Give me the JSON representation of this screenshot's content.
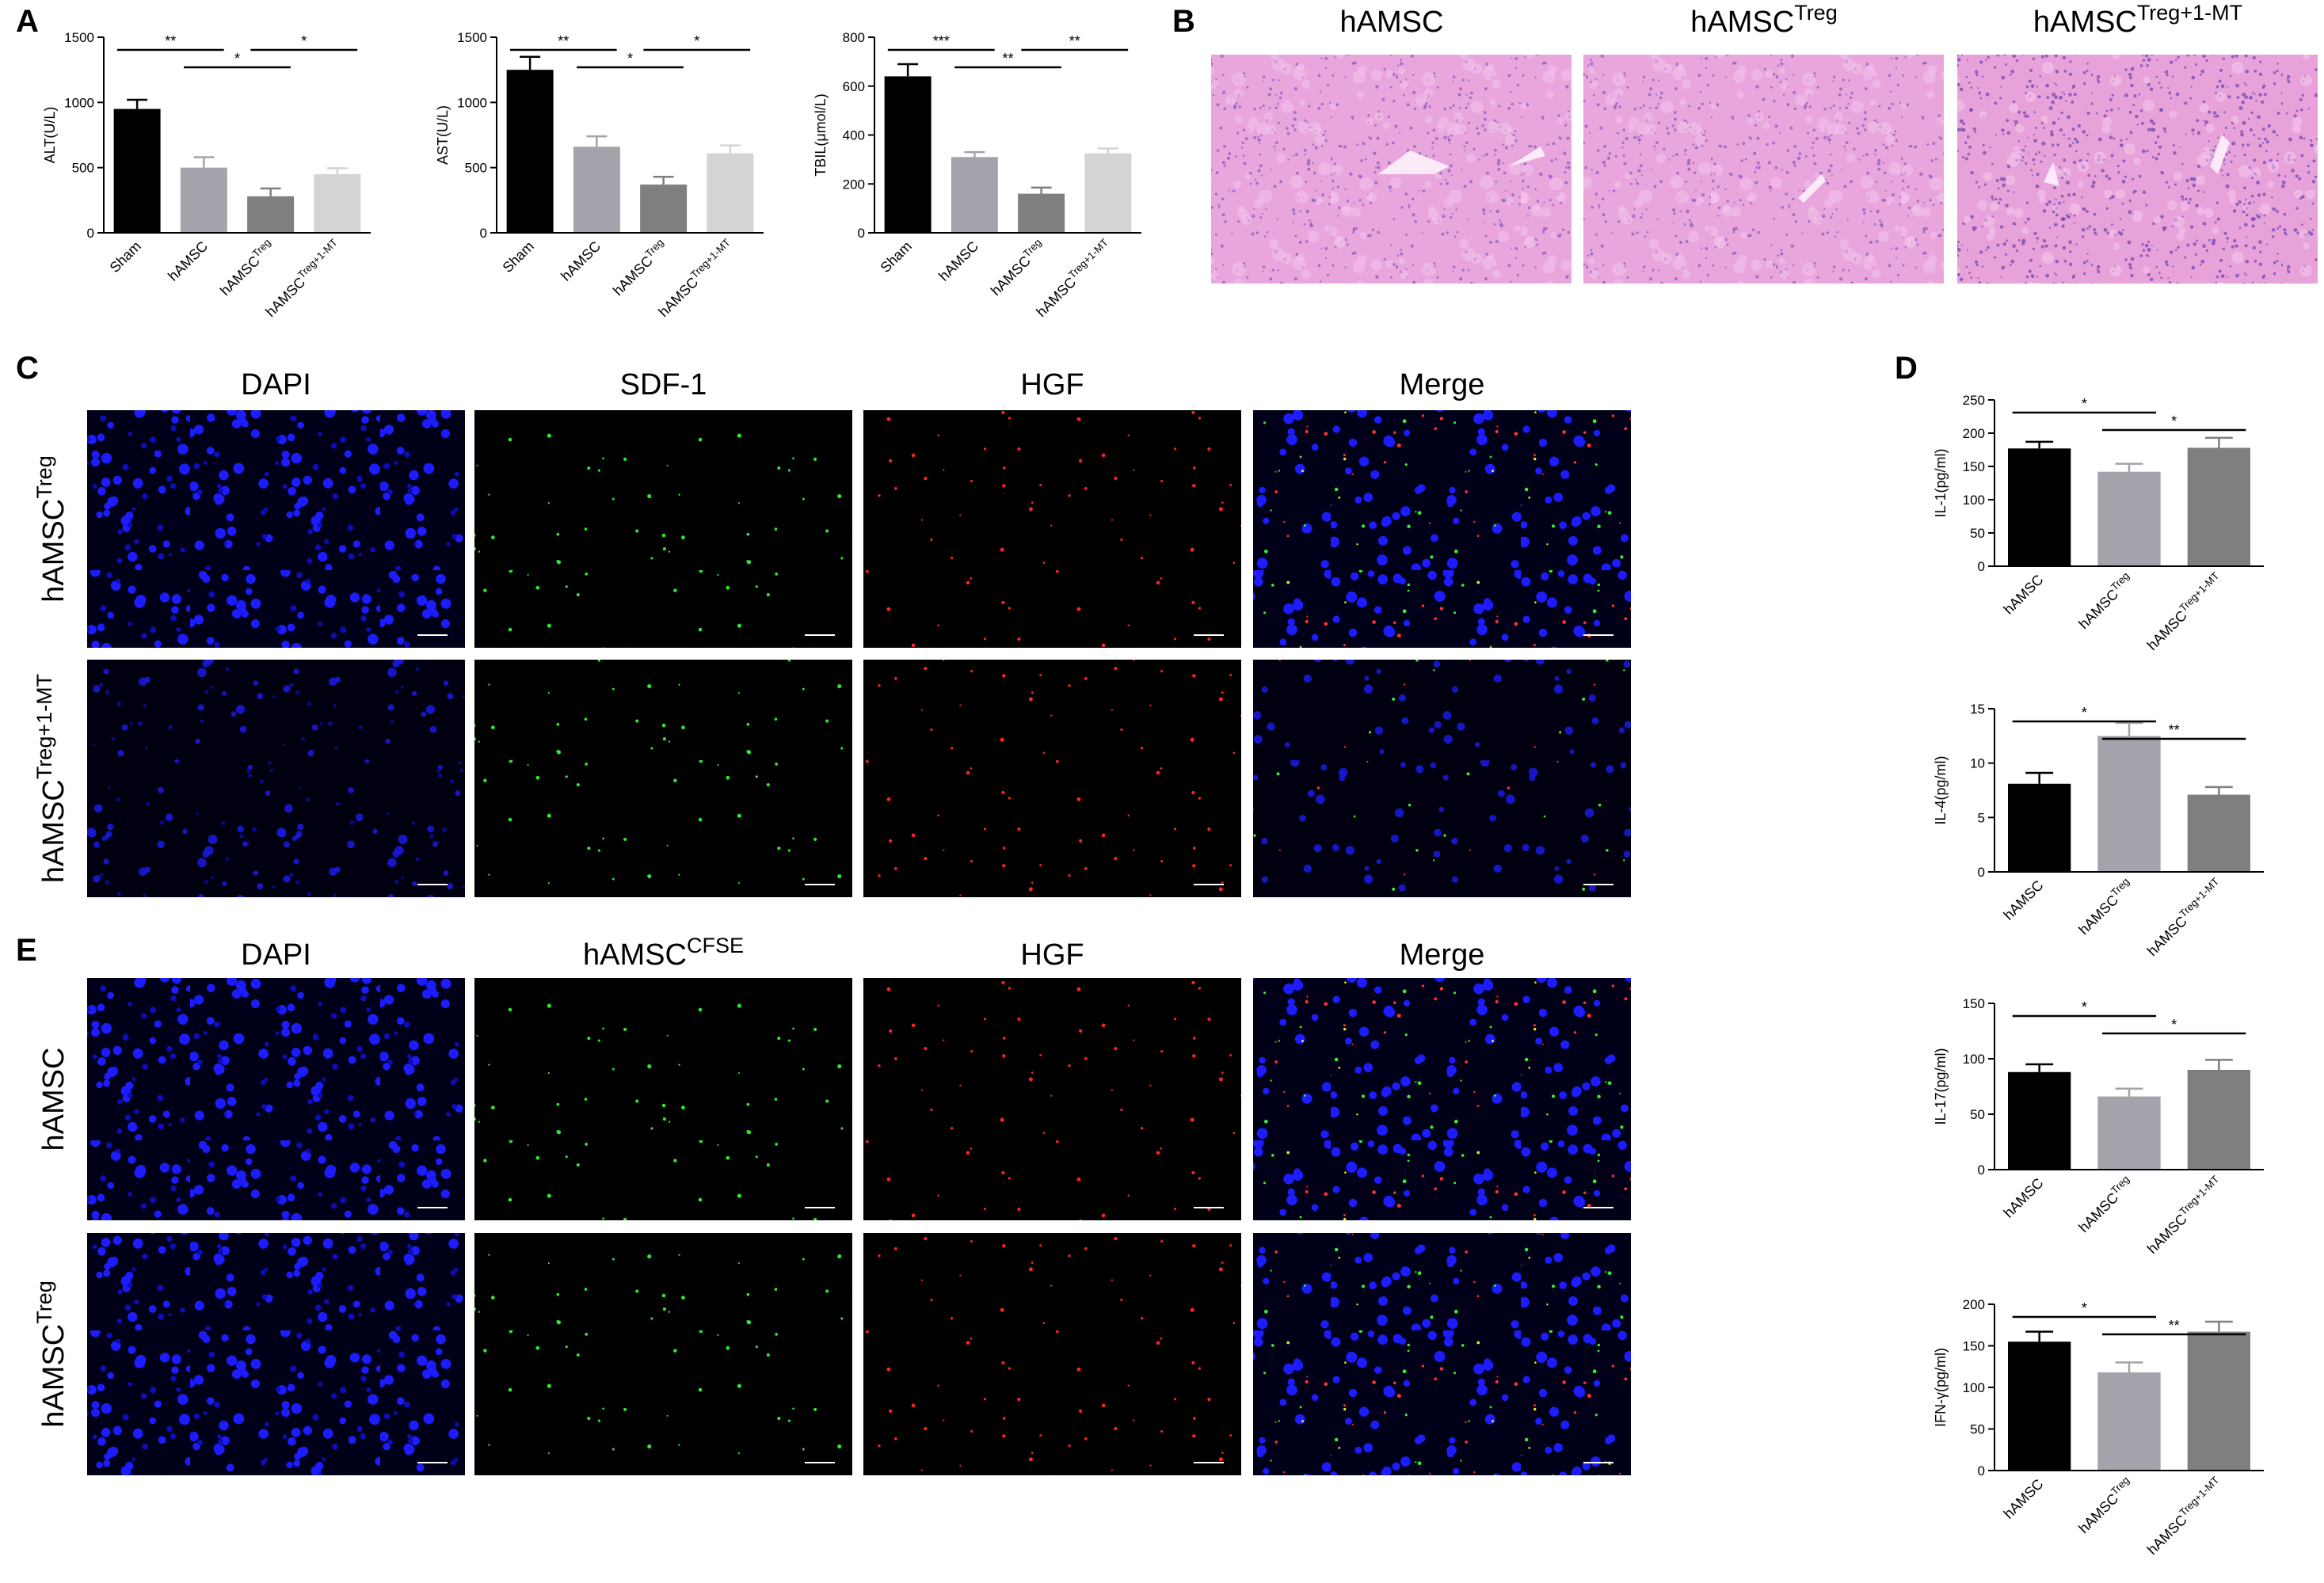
{
  "panel_labels": [
    "A",
    "B",
    "C",
    "D",
    "E"
  ],
  "panel_b": {
    "columns": [
      {
        "text": "hAMSC"
      },
      {
        "text": "hAMSC",
        "sup": "Treg"
      },
      {
        "text": "hAMSC",
        "sup": "Treg+1-MT"
      }
    ]
  },
  "panel_c": {
    "columns": [
      {
        "text": "DAPI"
      },
      {
        "text": "SDF-1"
      },
      {
        "text": "HGF"
      },
      {
        "text": "Merge"
      }
    ],
    "rows": [
      {
        "text": "hAMSC",
        "sup": "Treg"
      },
      {
        "text": "hAMSC",
        "sup": "Treg+1-MT"
      }
    ]
  },
  "panel_e": {
    "columns": [
      {
        "text": "DAPI"
      },
      {
        "text": "hAMSC",
        "sup": "CFSE"
      },
      {
        "text": "HGF"
      },
      {
        "text": "Merge"
      }
    ],
    "rows": [
      {
        "text": "hAMSC"
      },
      {
        "text": "hAMSC",
        "sup": "Treg"
      }
    ]
  },
  "chart_data": [
    {
      "type": "bar",
      "y_label": "ALT(U/L)",
      "categories": [
        {
          "text": "Sham"
        },
        {
          "text": "hAMSC"
        },
        {
          "text": "hAMSC",
          "sup": "Treg"
        },
        {
          "text": "hAMSC",
          "sup": "Treg+1-MT"
        }
      ],
      "values": [
        950,
        500,
        280,
        450
      ],
      "errors": [
        70,
        80,
        60,
        45
      ],
      "colors": [
        "#000000",
        "#a3a3ab",
        "#7f7f7f",
        "#d4d4d4"
      ],
      "ylim": [
        0,
        1500
      ],
      "yticks": [
        0,
        500,
        1000,
        1500
      ],
      "annotations": [
        {
          "between": [
            0,
            1
          ],
          "text": "**"
        },
        {
          "between": [
            1,
            2
          ],
          "text": "*"
        },
        {
          "between": [
            2,
            3
          ],
          "text": "*"
        }
      ]
    },
    {
      "type": "bar",
      "y_label": "AST(U/L)",
      "categories": [
        {
          "text": "Sham"
        },
        {
          "text": "hAMSC"
        },
        {
          "text": "hAMSC",
          "sup": "Treg"
        },
        {
          "text": "hAMSC",
          "sup": "Treg+1-MT"
        }
      ],
      "values": [
        1250,
        660,
        370,
        610
      ],
      "errors": [
        100,
        80,
        60,
        60
      ],
      "colors": [
        "#000000",
        "#a3a3ab",
        "#7f7f7f",
        "#d4d4d4"
      ],
      "ylim": [
        0,
        1500
      ],
      "yticks": [
        0,
        500,
        1000,
        1500
      ],
      "annotations": [
        {
          "between": [
            0,
            1
          ],
          "text": "**"
        },
        {
          "between": [
            1,
            2
          ],
          "text": "*"
        },
        {
          "between": [
            2,
            3
          ],
          "text": "*"
        }
      ]
    },
    {
      "type": "bar",
      "y_label": "TBIL(μmol/L)",
      "categories": [
        {
          "text": "Sham"
        },
        {
          "text": "hAMSC"
        },
        {
          "text": "hAMSC",
          "sup": "Treg"
        },
        {
          "text": "hAMSC",
          "sup": "Treg+1-MT"
        }
      ],
      "values": [
        640,
        310,
        160,
        325
      ],
      "errors": [
        50,
        20,
        25,
        20
      ],
      "colors": [
        "#000000",
        "#a3a3ab",
        "#7f7f7f",
        "#d4d4d4"
      ],
      "ylim": [
        0,
        800
      ],
      "yticks": [
        0,
        200,
        400,
        600,
        800
      ],
      "annotations": [
        {
          "between": [
            0,
            1
          ],
          "text": "***"
        },
        {
          "between": [
            1,
            2
          ],
          "text": "**"
        },
        {
          "between": [
            2,
            3
          ],
          "text": "**"
        }
      ]
    },
    {
      "type": "bar",
      "y_label": "IL-1(pg/ml)",
      "categories": [
        {
          "text": "hAMSC"
        },
        {
          "text": "hAMSC",
          "sup": "Treg"
        },
        {
          "text": "hAMSC",
          "sup": "Treg+1-MT"
        }
      ],
      "values": [
        177,
        142,
        178
      ],
      "errors": [
        10,
        12,
        15
      ],
      "colors": [
        "#000000",
        "#a3a3ab",
        "#7f7f7f"
      ],
      "ylim": [
        0,
        250
      ],
      "yticks": [
        0,
        50,
        100,
        150,
        200,
        250
      ],
      "annotations": [
        {
          "between": [
            0,
            1
          ],
          "text": "*"
        },
        {
          "between": [
            1,
            2
          ],
          "text": "*"
        }
      ]
    },
    {
      "type": "bar",
      "y_label": "IL-4(pg/ml)",
      "categories": [
        {
          "text": "hAMSC"
        },
        {
          "text": "hAMSC",
          "sup": "Treg"
        },
        {
          "text": "hAMSC",
          "sup": "Treg+1-MT"
        }
      ],
      "values": [
        8.1,
        12.5,
        7.1
      ],
      "errors": [
        1.0,
        1.2,
        0.7
      ],
      "colors": [
        "#000000",
        "#a3a3ab",
        "#7f7f7f"
      ],
      "ylim": [
        0,
        15
      ],
      "yticks": [
        0,
        5,
        10,
        15
      ],
      "annotations": [
        {
          "between": [
            0,
            1
          ],
          "text": "*"
        },
        {
          "between": [
            1,
            2
          ],
          "text": "**"
        }
      ]
    },
    {
      "type": "bar",
      "y_label": "IL-17(pg/ml)",
      "categories": [
        {
          "text": "hAMSC"
        },
        {
          "text": "hAMSC",
          "sup": "Treg"
        },
        {
          "text": "hAMSC",
          "sup": "Treg+1-MT"
        }
      ],
      "values": [
        88,
        66,
        90
      ],
      "errors": [
        7,
        7,
        9
      ],
      "colors": [
        "#000000",
        "#a3a3ab",
        "#7f7f7f"
      ],
      "ylim": [
        0,
        150
      ],
      "yticks": [
        0,
        50,
        100,
        150
      ],
      "annotations": [
        {
          "between": [
            0,
            1
          ],
          "text": "*"
        },
        {
          "between": [
            1,
            2
          ],
          "text": "*"
        }
      ]
    },
    {
      "type": "bar",
      "y_label": "IFN-γ(pg/ml)",
      "categories": [
        {
          "text": "hAMSC"
        },
        {
          "text": "hAMSC",
          "sup": "Treg"
        },
        {
          "text": "hAMSC",
          "sup": "Treg+1-MT"
        }
      ],
      "values": [
        155,
        118,
        167
      ],
      "errors": [
        12,
        12,
        12
      ],
      "colors": [
        "#000000",
        "#a3a3ab",
        "#7f7f7f"
      ],
      "ylim": [
        0,
        200
      ],
      "yticks": [
        0,
        50,
        100,
        150,
        200
      ],
      "annotations": [
        {
          "between": [
            0,
            1
          ],
          "text": "*"
        },
        {
          "between": [
            1,
            2
          ],
          "text": "**"
        }
      ]
    }
  ]
}
